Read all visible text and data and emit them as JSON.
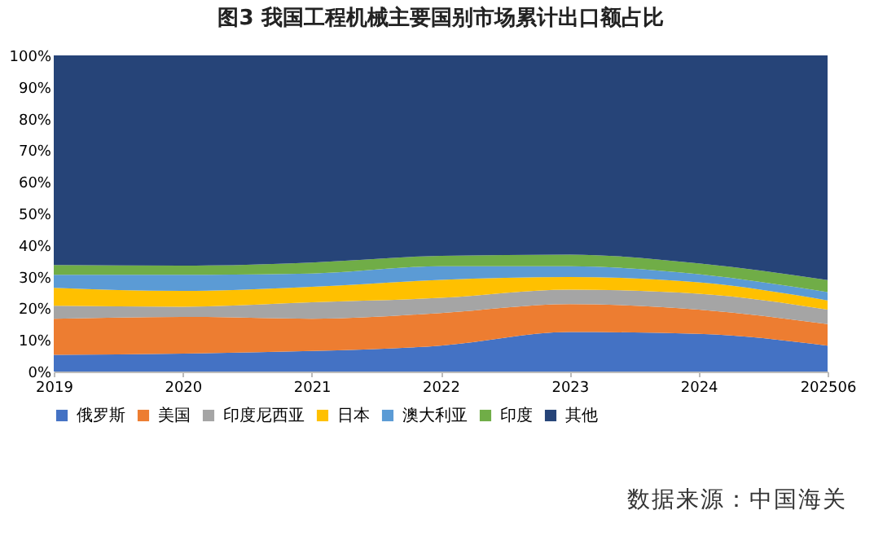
{
  "chart_data": {
    "type": "area",
    "title": "图3  我国工程机械主要国别市场累计出口额占比",
    "stacked": true,
    "legend": "bottom",
    "categories": [
      "2019",
      "2020",
      "2021",
      "2022",
      "2023",
      "2024",
      "202506"
    ],
    "ylim": [
      0,
      100
    ],
    "yticks": [
      {
        "value": 0,
        "label": "0%"
      },
      {
        "value": 10,
        "label": "10%"
      },
      {
        "value": 20,
        "label": "20%"
      },
      {
        "value": 30,
        "label": "30%"
      },
      {
        "value": 40,
        "label": "40%"
      },
      {
        "value": 50,
        "label": "50%"
      },
      {
        "value": 60,
        "label": "60%"
      },
      {
        "value": 70,
        "label": "70%"
      },
      {
        "value": 80,
        "label": "80%"
      },
      {
        "value": 90,
        "label": "90%"
      },
      {
        "value": 100,
        "label": "100%"
      }
    ],
    "series": [
      {
        "name": "俄罗斯",
        "color": "#4472c4",
        "values": [
          5.3,
          5.7,
          6.5,
          8.2,
          12.5,
          11.9,
          8.2
        ]
      },
      {
        "name": "美国",
        "color": "#ed7d31",
        "values": [
          11.4,
          11.6,
          10.2,
          10.3,
          8.8,
          7.7,
          6.8
        ]
      },
      {
        "name": "印度尼西亚",
        "color": "#a5a5a5",
        "values": [
          4.1,
          3.2,
          5.2,
          4.8,
          4.6,
          5.0,
          4.6
        ]
      },
      {
        "name": "日本",
        "color": "#ffc000",
        "values": [
          5.7,
          5.0,
          4.9,
          5.7,
          4.0,
          3.6,
          2.9
        ]
      },
      {
        "name": "澳大利亚",
        "color": "#5b9bd5",
        "values": [
          4.1,
          5.1,
          4.2,
          4.3,
          3.4,
          2.6,
          2.6
        ]
      },
      {
        "name": "印度",
        "color": "#70ad47",
        "values": [
          3.1,
          2.9,
          3.5,
          3.3,
          3.7,
          3.4,
          3.8
        ]
      },
      {
        "name": "其他",
        "color": "#264478",
        "values": [
          66.3,
          66.5,
          65.5,
          63.4,
          63.0,
          65.8,
          71.1
        ]
      }
    ],
    "annotations": [
      "数据来源：中国海关"
    ]
  }
}
